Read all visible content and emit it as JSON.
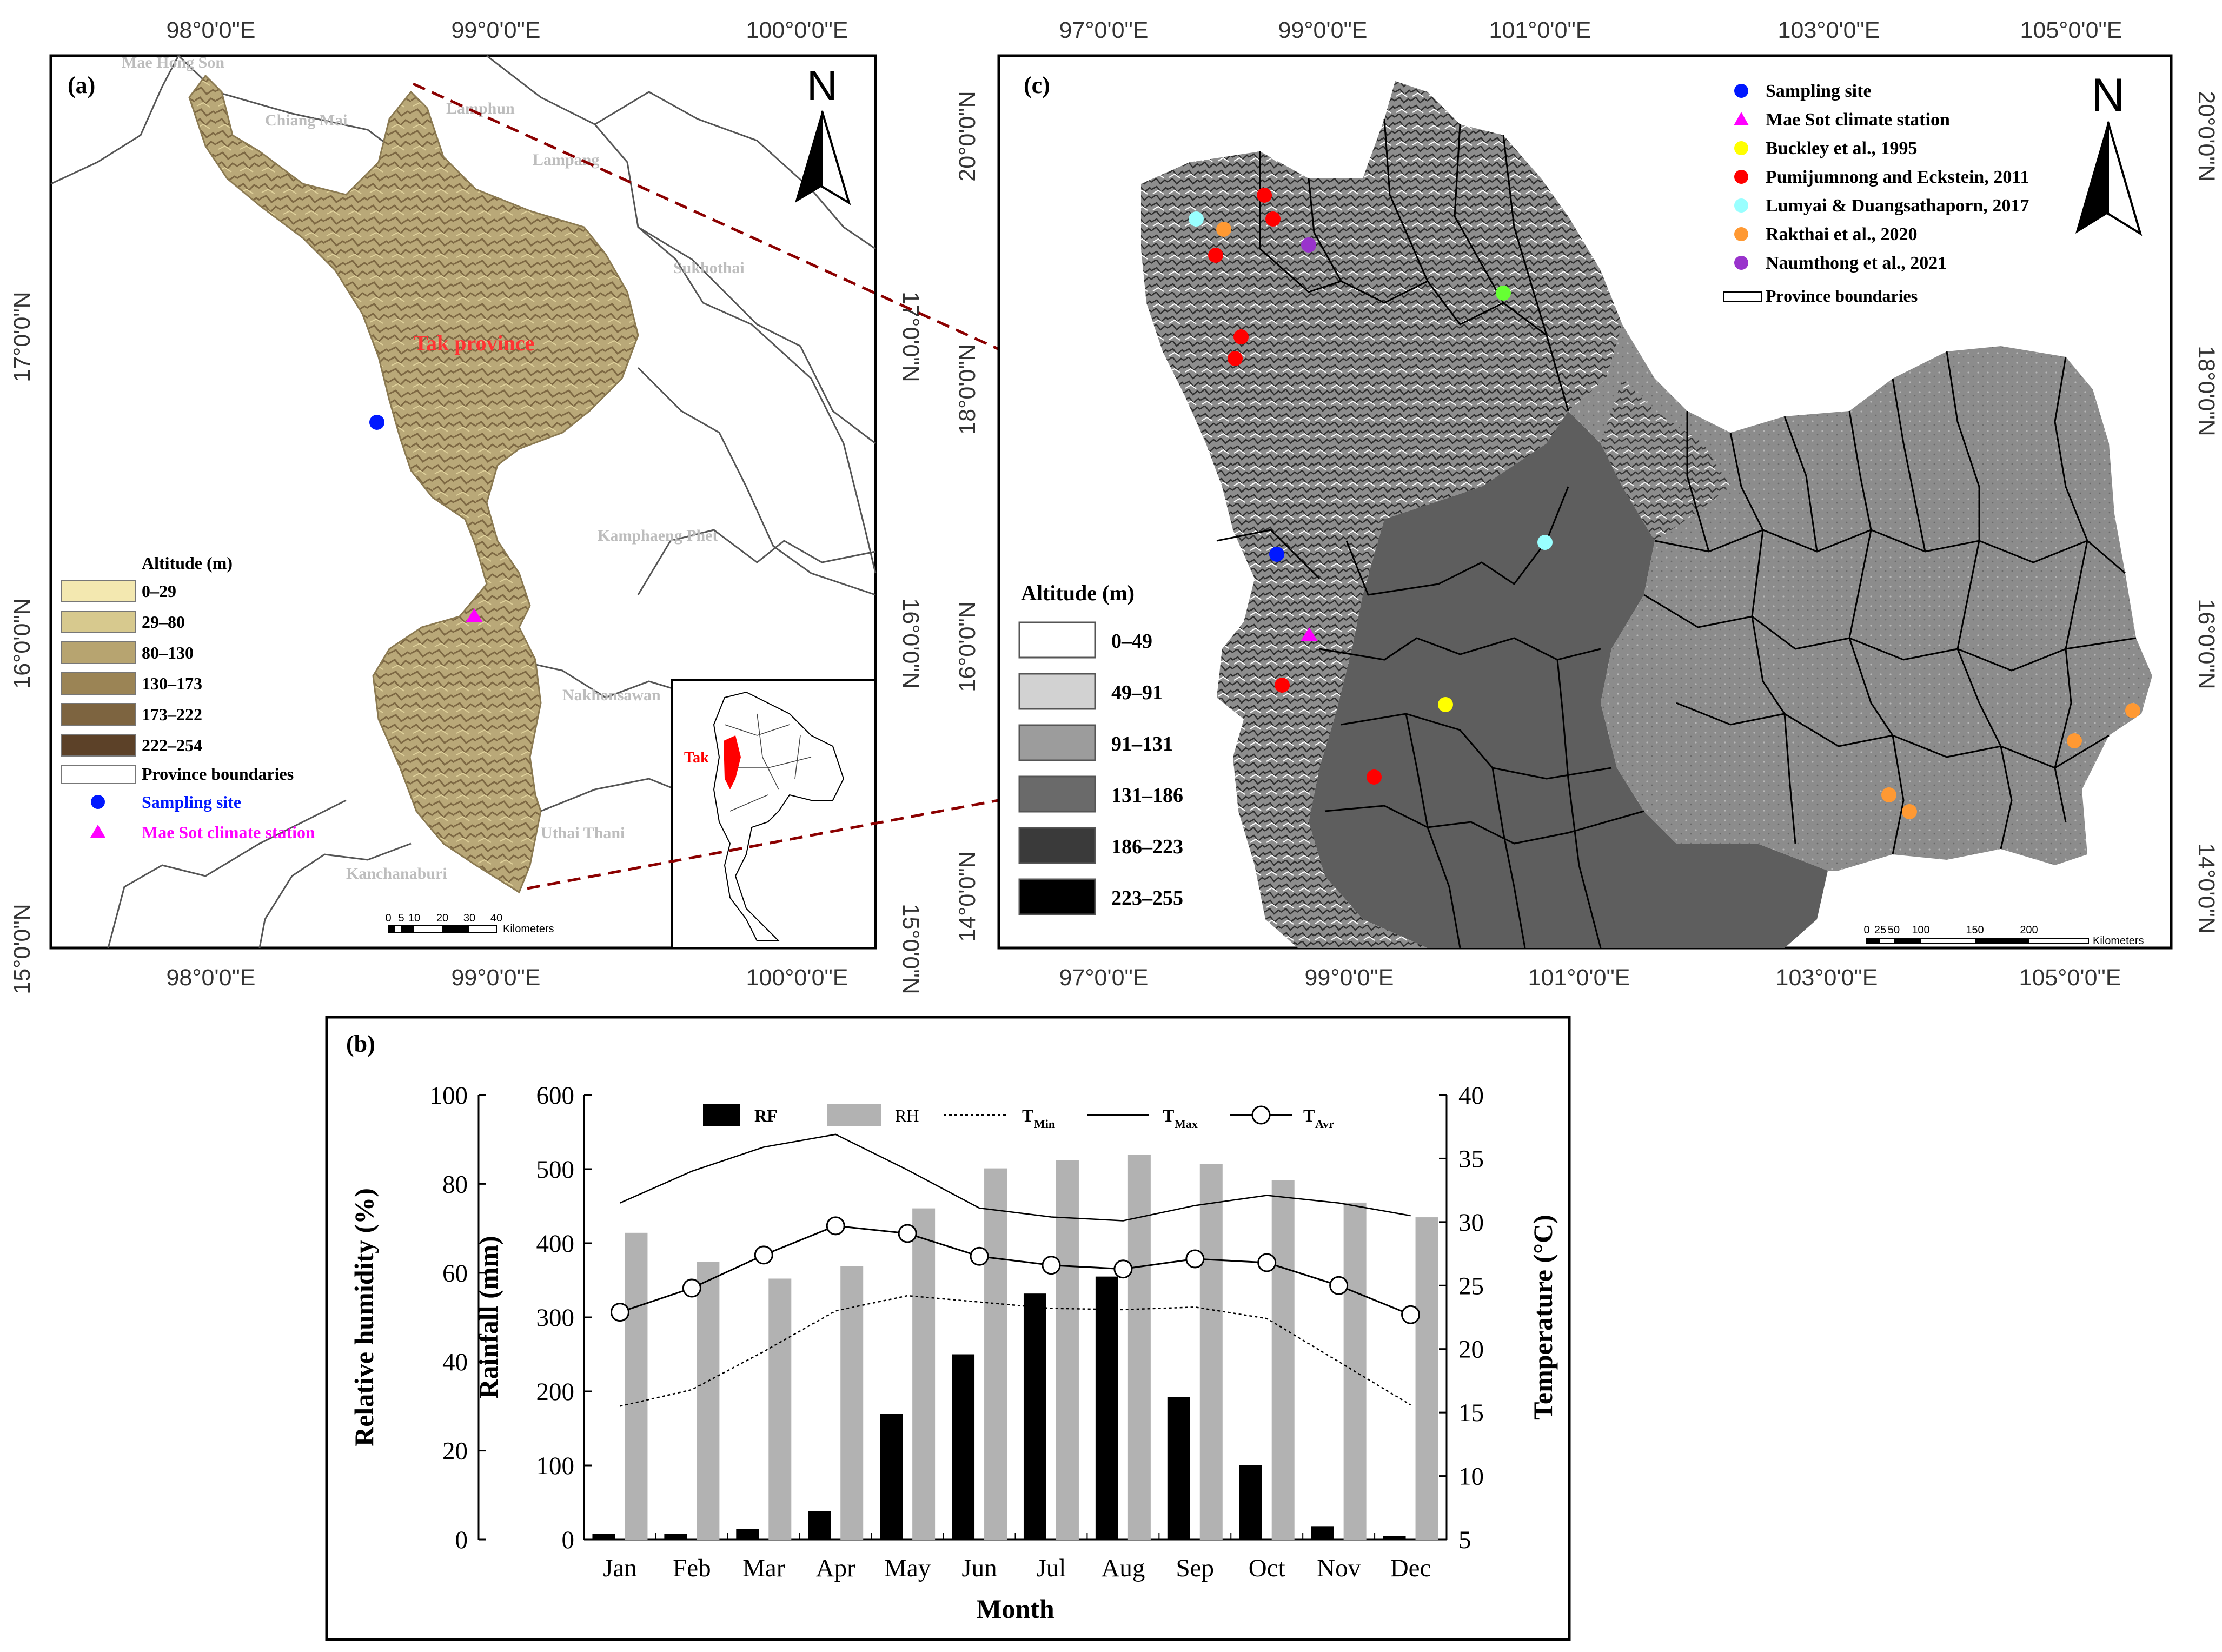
{
  "panel_a": {
    "label": "(a)",
    "north": "N",
    "top_ticks": [
      "98°0'0\"E",
      "99°0'0\"E",
      "100°0'0\"E"
    ],
    "bottom_ticks": [
      "98°0'0\"E",
      "99°0'0\"E",
      "100°0'0\"E"
    ],
    "left_ticks": [
      "17°0'0\"N",
      "16°0'0\"N",
      "15°0'0\"N"
    ],
    "right_ticks": [
      "17°0'0\"N",
      "16°0'0\"N",
      "15°0'0\"N"
    ],
    "provinces": [
      "Mae Hong Son",
      "Chiang Mai",
      "Lamphun",
      "Lampang",
      "Sukhothai",
      "Kamphaeng Phet",
      "Nakhonsawan",
      "Uthai Thani",
      "Kanchanaburi"
    ],
    "tak_label": "Tak province",
    "inset_label": "Tak",
    "legend_title": "Altitude (m)",
    "legend_classes": [
      {
        "label": "0–29",
        "color": "#f3e8b0"
      },
      {
        "label": "29–80",
        "color": "#d7c98e"
      },
      {
        "label": "80–130",
        "color": "#b7a470"
      },
      {
        "label": "130–173",
        "color": "#9b8455"
      },
      {
        "label": "173–222",
        "color": "#7d6440"
      },
      {
        "label": "222–254",
        "color": "#5c4128"
      }
    ],
    "legend_boundaries": "Province boundaries",
    "legend_site": "Sampling site",
    "legend_station": "Mae Sot climate station",
    "scale_ticks": [
      "0",
      "5",
      "10",
      "20",
      "30",
      "40"
    ],
    "scale_unit": "Kilometers"
  },
  "panel_c": {
    "label": "(c)",
    "north": "N",
    "top_ticks": [
      "97°0'0\"E",
      "99°0'0\"E",
      "101°0'0\"E",
      "103°0'0\"E",
      "105°0'0\"E"
    ],
    "bottom_ticks": [
      "97°0'0\"E",
      "99°0'0\"E",
      "101°0'0\"E",
      "103°0'0\"E",
      "105°0'0\"E"
    ],
    "left_ticks": [
      "20°0'0\"N",
      "18°0'0\"N",
      "16°0'0\"N",
      "14°0'0\"N"
    ],
    "right_ticks": [
      "20°0'0\"N",
      "18°0'0\"N",
      "16°0'0\"N",
      "14°0'0\"N"
    ],
    "legend_items": [
      {
        "label": "Sampling site",
        "color": "#0018ff",
        "shape": "circle"
      },
      {
        "label": "Mae Sot climate station",
        "color": "#ff00ff",
        "shape": "triangle"
      },
      {
        "label": "Buckley et al., 1995",
        "color": "#ffff00",
        "shape": "circle"
      },
      {
        "label": "Pumijumnong and Eckstein, 2011",
        "color": "#ff0000",
        "shape": "circle"
      },
      {
        "label": "Lumyai & Duangsathaporn, 2017",
        "color": "#99ffff",
        "shape": "circle"
      },
      {
        "label": "Rakthai et al., 2020",
        "color": "#ff9933",
        "shape": "circle"
      },
      {
        "label": "Naumthong et al., 2021",
        "color": "#9933cc",
        "shape": "circle"
      }
    ],
    "legend_boundaries": "Province boundaries",
    "altitude_title": "Altitude (m)",
    "altitude_classes": [
      {
        "label": "0–49",
        "color": "#ffffff"
      },
      {
        "label": "49–91",
        "color": "#d2d2d2"
      },
      {
        "label": "91–131",
        "color": "#9c9c9c"
      },
      {
        "label": "131–186",
        "color": "#6a6a6a"
      },
      {
        "label": "186–223",
        "color": "#3a3a3a"
      },
      {
        "label": "223–255",
        "color": "#000000"
      }
    ],
    "scale_ticks": [
      "0",
      "25",
      "50",
      "100",
      "150",
      "200"
    ],
    "scale_unit": "Kilometers"
  },
  "panel_b": {
    "label": "(b)"
  },
  "chart_data": {
    "type": "bar",
    "categories": [
      "Jan",
      "Feb",
      "Mar",
      "Apr",
      "May",
      "Jun",
      "Jul",
      "Aug",
      "Sep",
      "Oct",
      "Nov",
      "Dec"
    ],
    "xlabel": "Month",
    "ylabel_left": "Relative humidity (%)",
    "ylabel_mid": "Rainfall (mm)",
    "ylabel_right": "Temperature (°C)",
    "ylim_rh": [
      0,
      100
    ],
    "ylim_rain": [
      0,
      600
    ],
    "ylim_temp": [
      5,
      40
    ],
    "ticks_rh": [
      0,
      20,
      40,
      60,
      80,
      100
    ],
    "ticks_rain": [
      0,
      100,
      200,
      300,
      400,
      500,
      600
    ],
    "ticks_temp": [
      5,
      10,
      15,
      20,
      25,
      30,
      35,
      40
    ],
    "series": [
      {
        "name": "RF",
        "kind": "bar",
        "axis": "rain",
        "color": "#000000",
        "values": [
          8,
          8,
          14,
          38,
          170,
          250,
          332,
          355,
          192,
          100,
          18,
          5
        ]
      },
      {
        "name": "RH",
        "kind": "bar",
        "axis": "rh",
        "color": "#b2b2b2",
        "values": [
          69,
          62.5,
          58.7,
          61.5,
          74.5,
          83.5,
          85.3,
          86.5,
          84.5,
          80.8,
          75.8,
          72.5
        ]
      },
      {
        "name": "TMin",
        "kind": "line",
        "axis": "temp",
        "style": "dotted",
        "values": [
          15.5,
          16.8,
          19.8,
          23,
          24.2,
          23.7,
          23.2,
          23.1,
          23.3,
          22.4,
          19,
          15.6
        ]
      },
      {
        "name": "TMax",
        "kind": "line",
        "axis": "temp",
        "style": "solid",
        "values": [
          31.5,
          34,
          35.9,
          36.9,
          34.1,
          31.1,
          30.4,
          30.1,
          31.3,
          32.1,
          31.5,
          30.5
        ]
      },
      {
        "name": "TAvr",
        "kind": "line",
        "axis": "temp",
        "style": "circle",
        "values": [
          22.9,
          24.8,
          27.4,
          29.7,
          29.1,
          27.3,
          26.6,
          26.3,
          27.1,
          26.8,
          25,
          22.7
        ]
      }
    ],
    "legend": [
      {
        "label": "RF",
        "sub": ""
      },
      {
        "label": "RH",
        "sub": ""
      },
      {
        "label": "T",
        "sub": "Min"
      },
      {
        "label": "T",
        "sub": "Max"
      },
      {
        "label": "T",
        "sub": "Avr"
      }
    ]
  }
}
